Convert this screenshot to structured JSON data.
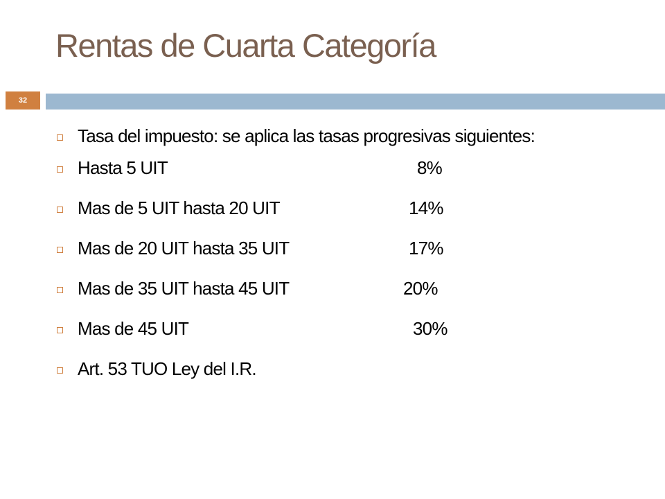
{
  "slide": {
    "title": "Rentas de Cuarta Categoría",
    "page_number": "32",
    "accent_color": "#d08040",
    "rule_color": "#9cb8d0",
    "title_color": "#7a6050"
  },
  "bullets": {
    "intro": "Tasa del impuesto: se aplica las tasas progresivas siguientes:",
    "rates": [
      {
        "label": "Hasta 5 UIT",
        "value": "8%"
      },
      {
        "label": "Mas de 5 UIT hasta 20 UIT",
        "value": "14%"
      },
      {
        "label": "Mas de 20 UIT hasta 35 UIT",
        "value": "17%"
      },
      {
        "label": "Mas de 35 UIT hasta 45 UIT",
        "value": "20%"
      },
      {
        "label": "Mas de 45 UIT",
        "value": "30%"
      }
    ],
    "reference": "Art. 53 TUO Ley del I.R."
  }
}
